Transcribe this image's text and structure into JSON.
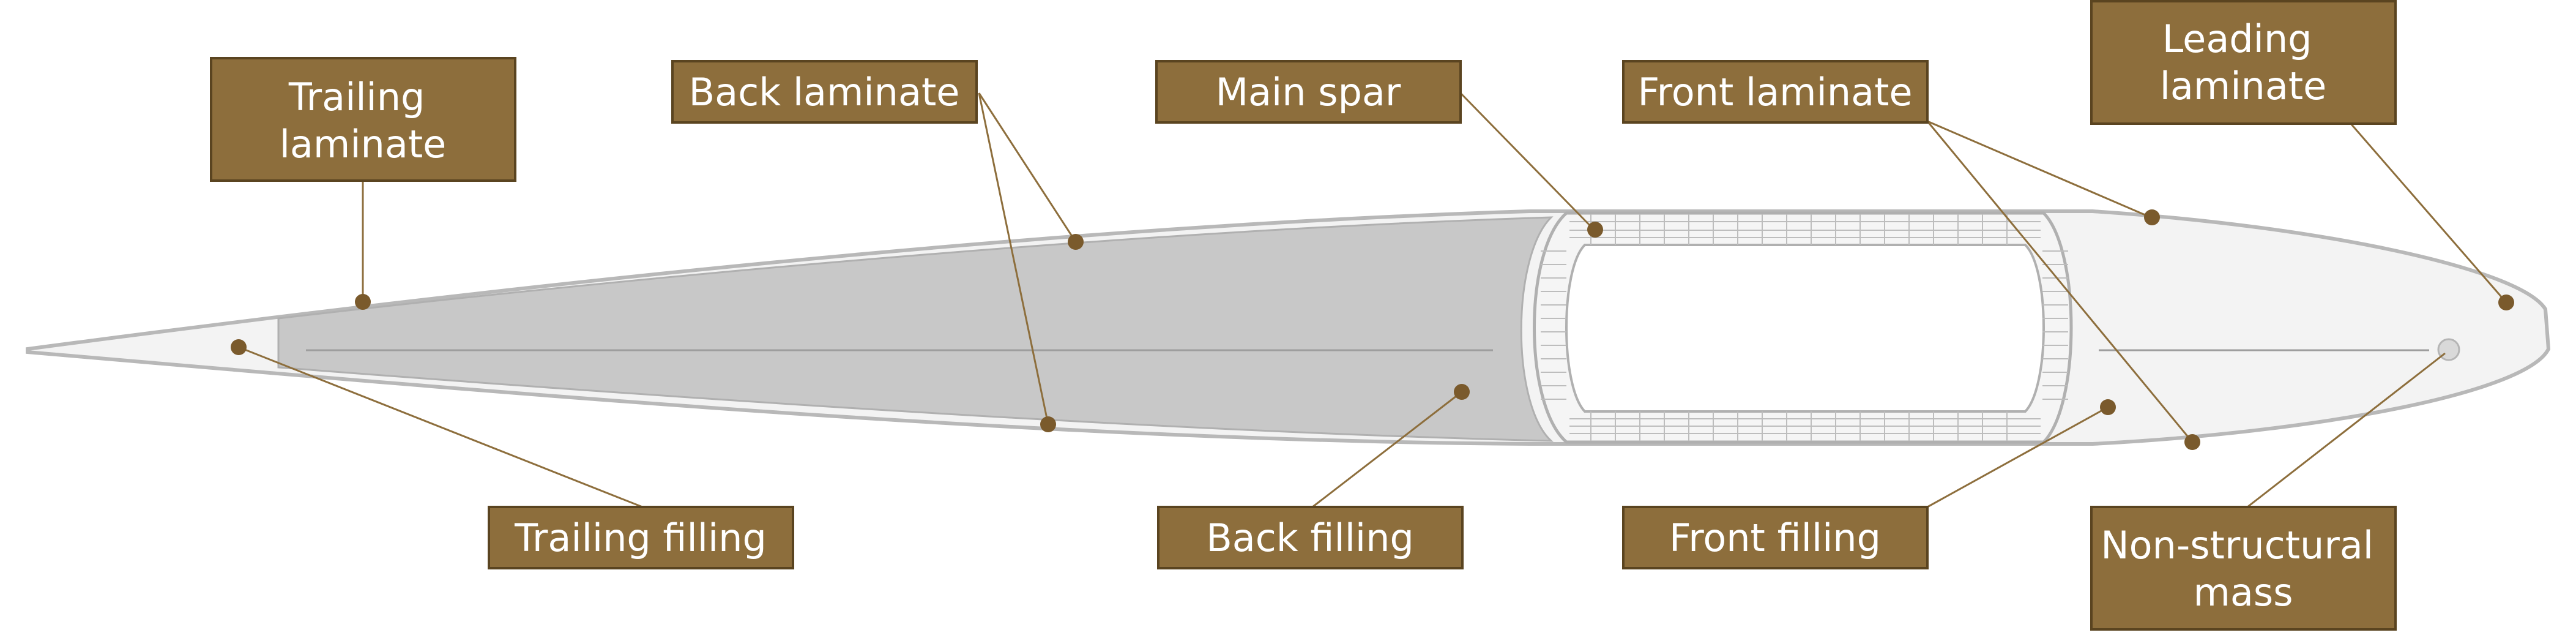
{
  "diagram": {
    "labels": {
      "trailing_laminate": [
        "Trailing",
        "laminate"
      ],
      "back_laminate": [
        "Back laminate"
      ],
      "main_spar": [
        "Main spar"
      ],
      "front_laminate": [
        "Front laminate"
      ],
      "leading_laminate": [
        "Leading",
        "laminate"
      ],
      "trailing_filling": [
        "Trailing filling"
      ],
      "back_filling": [
        "Back filling"
      ],
      "front_filling": [
        "Front filling"
      ],
      "non_structural_mass": [
        "Non-structural",
        "mass"
      ]
    },
    "colors": {
      "label_box": "#8d6e3c",
      "label_border": "#5a4420",
      "label_text": "#ffffff",
      "leader": "#8d6e3c",
      "marker": "#7a5a2c",
      "back_filling": "#c8c8c8",
      "skin": "#f3f3f3",
      "outline": "#b8b8b8",
      "spar_mesh": "#bdbdbd",
      "ns_mass": "#d9d9d9"
    }
  }
}
